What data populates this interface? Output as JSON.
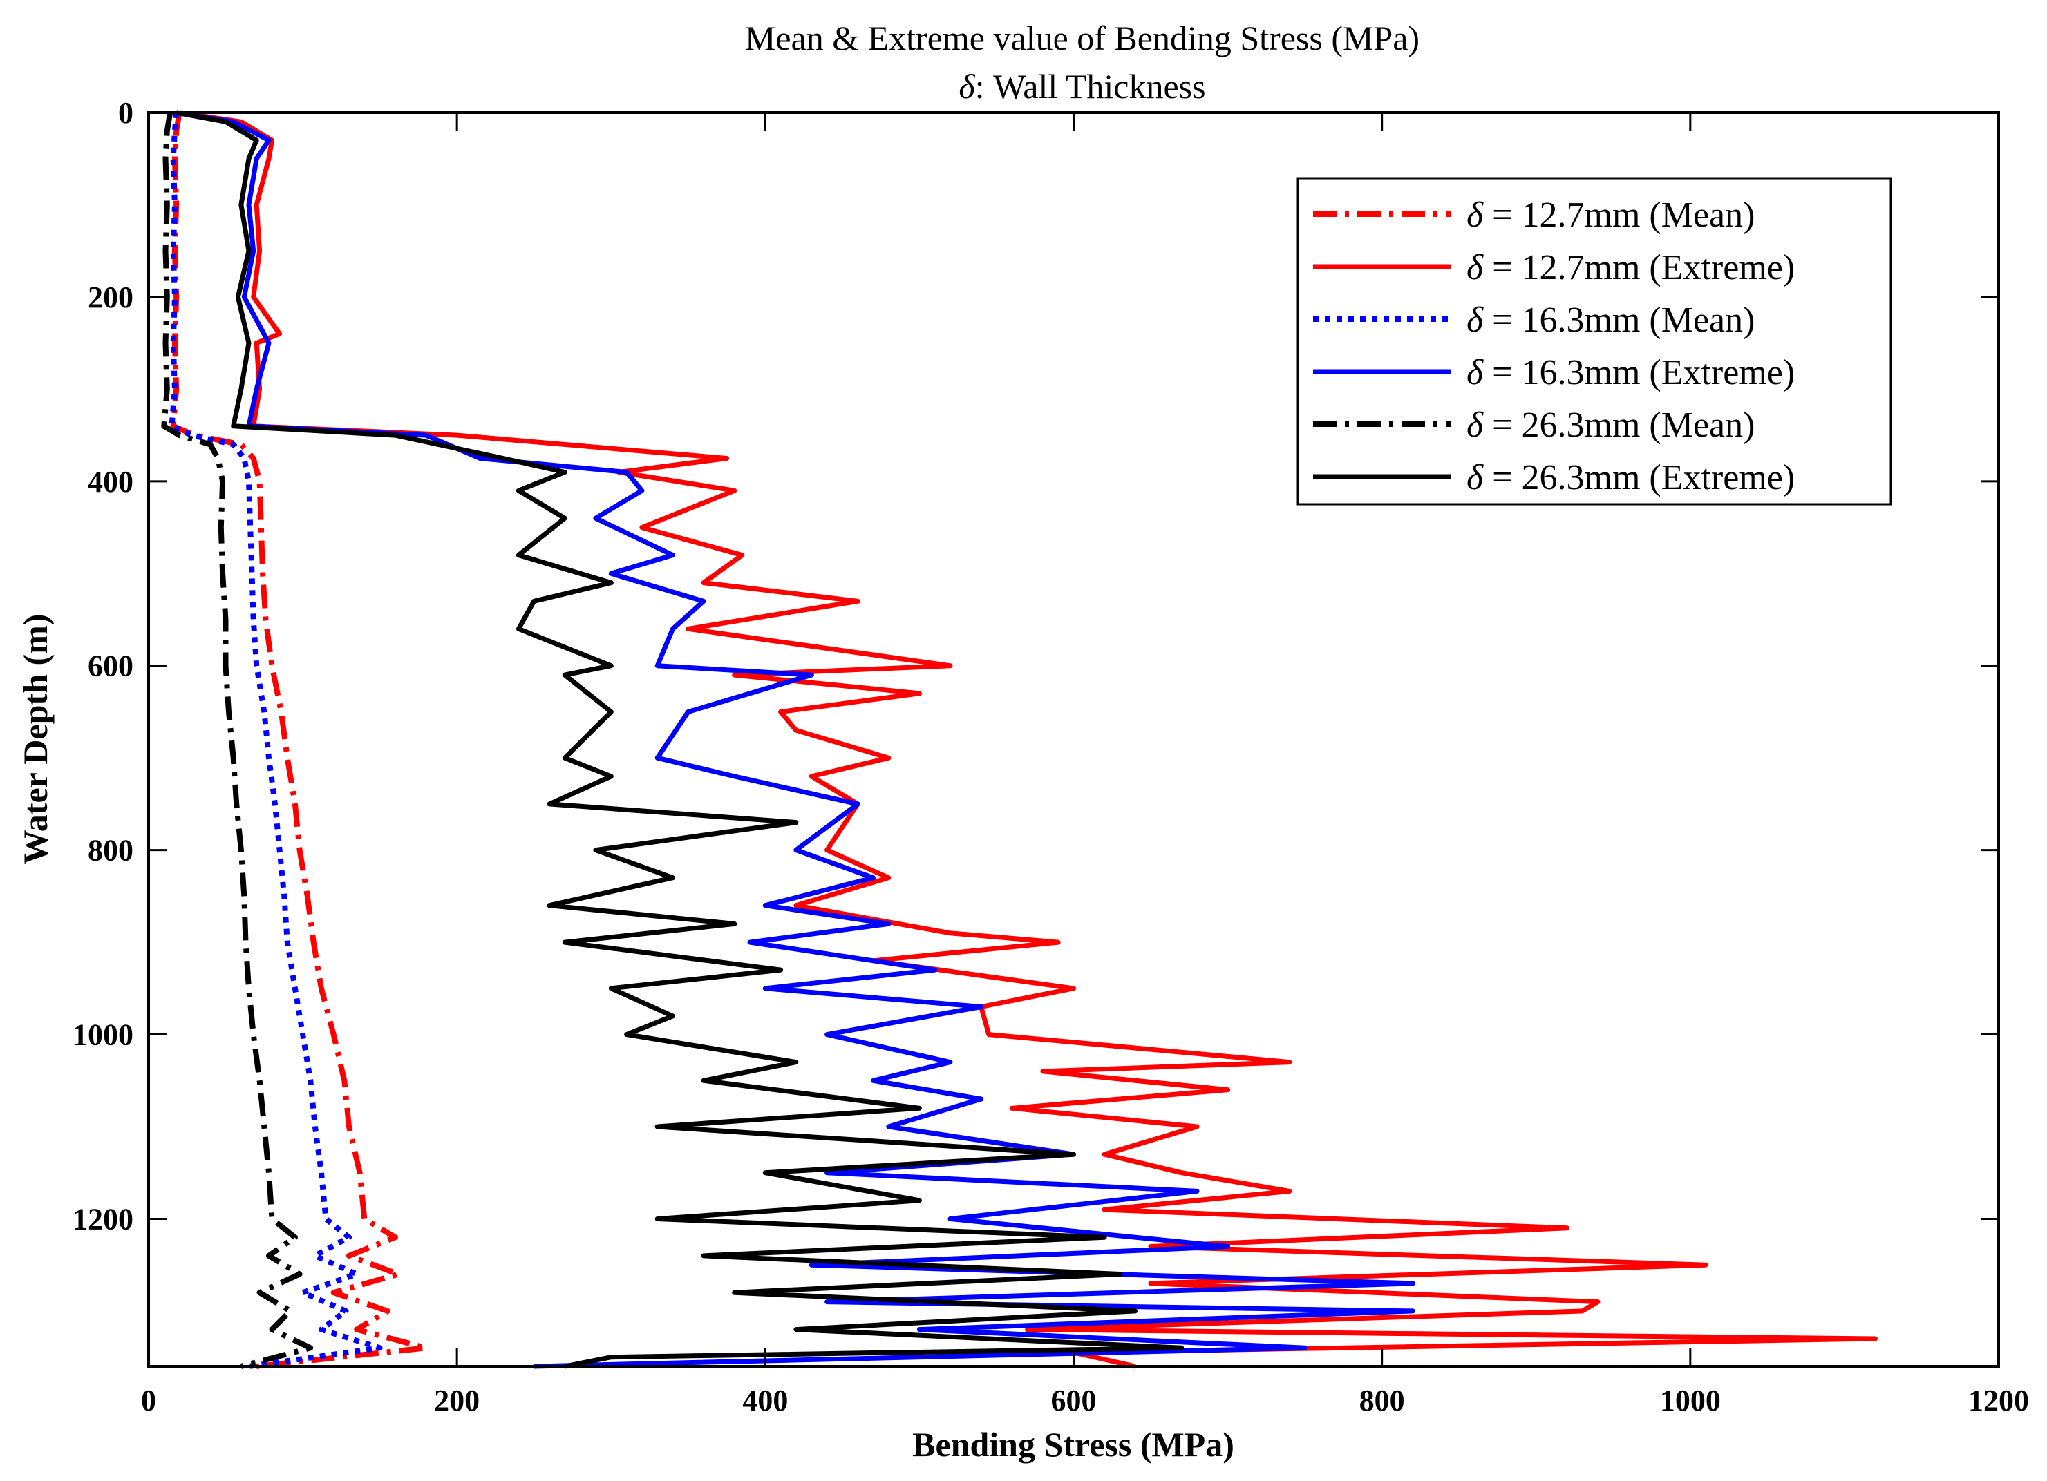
{
  "chart_data": {
    "type": "line",
    "title": "Mean & Extreme value of Bending Stress (MPa)",
    "subtitle_symbol": "δ",
    "subtitle": ": Wall Thickness",
    "xlabel": "Bending Stress (MPa)",
    "ylabel": "Water Depth (m)",
    "xlim": [
      0,
      1200
    ],
    "ylim": [
      0,
      1360
    ],
    "y_reversed": true,
    "xticks": [
      0,
      200,
      400,
      600,
      800,
      1000,
      1200
    ],
    "yticks": [
      0,
      200,
      400,
      600,
      800,
      1000,
      1200
    ],
    "grid": false,
    "legend_position": "top-right",
    "series": [
      {
        "name": "12.7mm (Mean)",
        "legend_symbol": "δ",
        "legend_label": " = 12.7mm (Mean)",
        "color": "#ff0000",
        "dash": "dashdot",
        "depth": [
          0,
          20,
          50,
          100,
          150,
          200,
          250,
          300,
          340,
          350,
          360,
          375,
          400,
          450,
          500,
          550,
          600,
          650,
          700,
          750,
          800,
          850,
          900,
          950,
          1000,
          1050,
          1100,
          1150,
          1200,
          1220,
          1240,
          1260,
          1280,
          1300,
          1320,
          1340,
          1360
        ],
        "stress": [
          20,
          18,
          17,
          18,
          17,
          18,
          17,
          18,
          16,
          30,
          60,
          68,
          72,
          73,
          74,
          76,
          80,
          86,
          90,
          95,
          98,
          103,
          107,
          112,
          120,
          127,
          130,
          137,
          140,
          160,
          130,
          162,
          120,
          155,
          135,
          180,
          70
        ]
      },
      {
        "name": "12.7mm (Extreme)",
        "legend_symbol": "δ",
        "legend_label": " = 12.7mm (Extreme)",
        "color": "#ff0000",
        "dash": "solid",
        "depth": [
          0,
          10,
          30,
          50,
          100,
          150,
          200,
          240,
          250,
          300,
          340,
          350,
          375,
          390,
          410,
          450,
          480,
          510,
          530,
          560,
          600,
          610,
          630,
          650,
          670,
          700,
          720,
          750,
          800,
          830,
          860,
          890,
          900,
          920,
          950,
          970,
          1000,
          1030,
          1040,
          1060,
          1080,
          1100,
          1130,
          1150,
          1170,
          1190,
          1210,
          1230,
          1250,
          1270,
          1290,
          1300,
          1320,
          1330,
          1345,
          1360
        ],
        "stress": [
          20,
          60,
          80,
          78,
          70,
          72,
          68,
          85,
          70,
          72,
          68,
          200,
          375,
          305,
          380,
          320,
          385,
          360,
          460,
          350,
          520,
          380,
          500,
          410,
          420,
          480,
          430,
          460,
          440,
          480,
          420,
          520,
          590,
          470,
          600,
          540,
          545,
          740,
          580,
          700,
          560,
          680,
          620,
          670,
          740,
          620,
          920,
          650,
          1010,
          650,
          940,
          930,
          570,
          1120,
          600,
          640
        ]
      },
      {
        "name": "16.3mm (Mean)",
        "legend_symbol": "δ",
        "legend_label": " = 16.3mm (Mean)",
        "color": "#0000ff",
        "dash": "dotted",
        "depth": [
          0,
          20,
          50,
          100,
          150,
          200,
          250,
          300,
          340,
          350,
          360,
          375,
          400,
          450,
          500,
          550,
          600,
          650,
          700,
          750,
          800,
          850,
          900,
          950,
          1000,
          1050,
          1100,
          1150,
          1200,
          1220,
          1240,
          1260,
          1280,
          1300,
          1320,
          1340,
          1360
        ],
        "stress": [
          18,
          17,
          16,
          17,
          16,
          17,
          16,
          17,
          15,
          28,
          55,
          62,
          65,
          66,
          67,
          68,
          70,
          75,
          78,
          82,
          85,
          88,
          90,
          95,
          100,
          105,
          108,
          112,
          115,
          130,
          108,
          135,
          100,
          128,
          112,
          150,
          65
        ]
      },
      {
        "name": "16.3mm (Extreme)",
        "legend_symbol": "δ",
        "legend_label": " = 16.3mm (Extreme)",
        "color": "#0000ff",
        "dash": "solid",
        "depth": [
          0,
          10,
          30,
          50,
          100,
          150,
          200,
          250,
          300,
          340,
          350,
          375,
          390,
          410,
          440,
          480,
          500,
          530,
          560,
          600,
          610,
          650,
          700,
          720,
          750,
          800,
          830,
          860,
          880,
          900,
          930,
          950,
          970,
          1000,
          1030,
          1050,
          1070,
          1100,
          1130,
          1150,
          1170,
          1200,
          1230,
          1250,
          1270,
          1290,
          1300,
          1320,
          1340,
          1360
        ],
        "stress": [
          18,
          55,
          78,
          70,
          65,
          68,
          62,
          78,
          70,
          65,
          180,
          215,
          310,
          320,
          290,
          340,
          300,
          360,
          340,
          330,
          430,
          350,
          330,
          380,
          460,
          420,
          470,
          400,
          480,
          390,
          510,
          400,
          540,
          440,
          520,
          470,
          540,
          480,
          600,
          440,
          680,
          520,
          700,
          430,
          820,
          440,
          820,
          500,
          750,
          250
        ]
      },
      {
        "name": "26.3mm (Mean)",
        "legend_symbol": "δ",
        "legend_label": " = 26.3mm (Mean)",
        "color": "#000000",
        "dash": "dashdot",
        "depth": [
          0,
          20,
          50,
          100,
          150,
          200,
          250,
          300,
          340,
          350,
          360,
          375,
          400,
          450,
          500,
          550,
          600,
          650,
          700,
          750,
          800,
          850,
          900,
          950,
          1000,
          1050,
          1100,
          1150,
          1200,
          1220,
          1240,
          1260,
          1280,
          1300,
          1320,
          1340,
          1360
        ],
        "stress": [
          14,
          12,
          11,
          12,
          11,
          12,
          11,
          12,
          10,
          20,
          40,
          45,
          48,
          47,
          48,
          50,
          50,
          52,
          55,
          57,
          60,
          62,
          63,
          65,
          68,
          72,
          75,
          78,
          80,
          95,
          78,
          98,
          72,
          92,
          80,
          105,
          60
        ]
      },
      {
        "name": "26.3mm (Extreme)",
        "legend_symbol": "δ",
        "legend_label": " = 26.3mm (Extreme)",
        "color": "#000000",
        "dash": "solid",
        "depth": [
          0,
          10,
          30,
          50,
          100,
          150,
          200,
          250,
          300,
          340,
          350,
          375,
          390,
          410,
          440,
          480,
          510,
          530,
          560,
          600,
          610,
          650,
          700,
          720,
          750,
          770,
          800,
          830,
          860,
          880,
          900,
          930,
          950,
          980,
          1000,
          1030,
          1050,
          1080,
          1100,
          1130,
          1150,
          1180,
          1200,
          1220,
          1240,
          1260,
          1280,
          1300,
          1320,
          1340,
          1350,
          1360
        ],
        "stress": [
          18,
          50,
          70,
          65,
          60,
          65,
          58,
          65,
          60,
          55,
          160,
          230,
          270,
          240,
          270,
          240,
          300,
          250,
          240,
          300,
          270,
          300,
          270,
          300,
          260,
          420,
          290,
          340,
          260,
          380,
          270,
          410,
          300,
          340,
          310,
          420,
          360,
          500,
          330,
          600,
          400,
          500,
          330,
          620,
          360,
          630,
          380,
          640,
          420,
          670,
          300,
          270
        ]
      }
    ]
  }
}
